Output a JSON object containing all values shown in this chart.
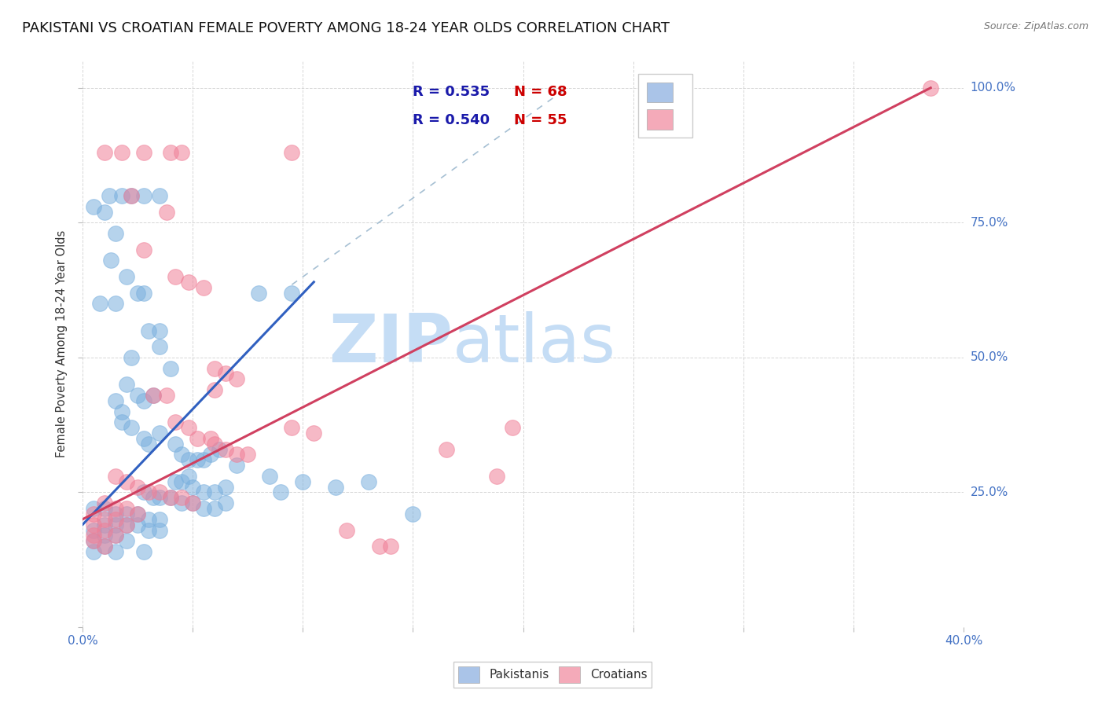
{
  "title": "PAKISTANI VS CROATIAN FEMALE POVERTY AMONG 18-24 YEAR OLDS CORRELATION CHART",
  "source": "Source: ZipAtlas.com",
  "ylabel": "Female Poverty Among 18-24 Year Olds",
  "pakistani_color": "#7ab0de",
  "croatian_color": "#f08098",
  "pakistani_scatter": [
    [
      0.5,
      78
    ],
    [
      1.2,
      80
    ],
    [
      1.8,
      80
    ],
    [
      2.2,
      80
    ],
    [
      2.8,
      80
    ],
    [
      3.5,
      80
    ],
    [
      1.0,
      77
    ],
    [
      1.5,
      73
    ],
    [
      1.3,
      68
    ],
    [
      2.0,
      65
    ],
    [
      1.5,
      60
    ],
    [
      0.8,
      60
    ],
    [
      2.5,
      62
    ],
    [
      2.8,
      62
    ],
    [
      3.0,
      55
    ],
    [
      3.5,
      52
    ],
    [
      2.2,
      50
    ],
    [
      2.0,
      45
    ],
    [
      2.5,
      43
    ],
    [
      2.8,
      42
    ],
    [
      1.5,
      42
    ],
    [
      1.8,
      40
    ],
    [
      3.2,
      43
    ],
    [
      1.8,
      38
    ],
    [
      2.2,
      37
    ],
    [
      2.8,
      35
    ],
    [
      3.5,
      36
    ],
    [
      3.0,
      34
    ],
    [
      3.5,
      55
    ],
    [
      4.0,
      48
    ],
    [
      4.2,
      34
    ],
    [
      4.5,
      32
    ],
    [
      4.8,
      31
    ],
    [
      5.2,
      31
    ],
    [
      5.5,
      31
    ],
    [
      5.8,
      32
    ],
    [
      6.2,
      33
    ],
    [
      4.2,
      27
    ],
    [
      4.5,
      27
    ],
    [
      4.8,
      28
    ],
    [
      5.0,
      26
    ],
    [
      5.5,
      25
    ],
    [
      6.0,
      25
    ],
    [
      6.5,
      26
    ],
    [
      7.0,
      30
    ],
    [
      2.8,
      25
    ],
    [
      3.2,
      24
    ],
    [
      3.5,
      24
    ],
    [
      4.0,
      24
    ],
    [
      4.5,
      23
    ],
    [
      5.0,
      23
    ],
    [
      5.5,
      22
    ],
    [
      6.0,
      22
    ],
    [
      6.5,
      23
    ],
    [
      0.5,
      22
    ],
    [
      1.0,
      22
    ],
    [
      1.5,
      21
    ],
    [
      2.0,
      21
    ],
    [
      2.5,
      21
    ],
    [
      3.0,
      20
    ],
    [
      3.5,
      20
    ],
    [
      1.0,
      19
    ],
    [
      1.5,
      19
    ],
    [
      2.0,
      19
    ],
    [
      2.5,
      19
    ],
    [
      3.0,
      18
    ],
    [
      3.5,
      18
    ],
    [
      0.5,
      18
    ],
    [
      1.0,
      17
    ],
    [
      1.5,
      17
    ],
    [
      2.0,
      16
    ],
    [
      0.5,
      16
    ],
    [
      1.0,
      15
    ],
    [
      1.5,
      14
    ],
    [
      0.5,
      14
    ],
    [
      2.8,
      14
    ],
    [
      8.5,
      28
    ],
    [
      9.0,
      25
    ],
    [
      10.0,
      27
    ],
    [
      11.5,
      26
    ],
    [
      13.0,
      27
    ],
    [
      15.0,
      21
    ],
    [
      8.0,
      62
    ],
    [
      9.5,
      62
    ]
  ],
  "croatian_scatter": [
    [
      1.0,
      88
    ],
    [
      1.8,
      88
    ],
    [
      2.8,
      88
    ],
    [
      4.0,
      88
    ],
    [
      4.5,
      88
    ],
    [
      9.5,
      88
    ],
    [
      2.2,
      80
    ],
    [
      3.8,
      77
    ],
    [
      2.8,
      70
    ],
    [
      4.2,
      65
    ],
    [
      4.8,
      64
    ],
    [
      5.5,
      63
    ],
    [
      6.0,
      48
    ],
    [
      6.5,
      47
    ],
    [
      7.0,
      46
    ],
    [
      6.0,
      44
    ],
    [
      3.2,
      43
    ],
    [
      3.8,
      43
    ],
    [
      4.2,
      38
    ],
    [
      4.8,
      37
    ],
    [
      5.2,
      35
    ],
    [
      5.8,
      35
    ],
    [
      6.0,
      34
    ],
    [
      6.5,
      33
    ],
    [
      7.0,
      32
    ],
    [
      7.5,
      32
    ],
    [
      1.5,
      28
    ],
    [
      2.0,
      27
    ],
    [
      2.5,
      26
    ],
    [
      3.0,
      25
    ],
    [
      3.5,
      25
    ],
    [
      4.0,
      24
    ],
    [
      4.5,
      24
    ],
    [
      5.0,
      23
    ],
    [
      1.0,
      23
    ],
    [
      1.5,
      22
    ],
    [
      2.0,
      22
    ],
    [
      2.5,
      21
    ],
    [
      0.5,
      21
    ],
    [
      1.0,
      20
    ],
    [
      1.5,
      20
    ],
    [
      2.0,
      19
    ],
    [
      0.5,
      19
    ],
    [
      1.0,
      18
    ],
    [
      1.5,
      17
    ],
    [
      0.5,
      17
    ],
    [
      0.5,
      16
    ],
    [
      1.0,
      15
    ],
    [
      12.0,
      18
    ],
    [
      13.5,
      15
    ],
    [
      16.5,
      33
    ],
    [
      9.5,
      37
    ],
    [
      19.5,
      37
    ],
    [
      10.5,
      36
    ],
    [
      18.8,
      28
    ],
    [
      14.0,
      15
    ],
    [
      38.5,
      100
    ]
  ],
  "pak_line_x": [
    0.0,
    10.5
  ],
  "pak_line_y": [
    19.0,
    64.0
  ],
  "cro_line_x": [
    0.0,
    38.5
  ],
  "cro_line_y": [
    20.0,
    100.0
  ],
  "diag_line_x": [
    9.5,
    22.0
  ],
  "diag_line_y": [
    63.5,
    100.0
  ],
  "xlim": [
    0,
    40
  ],
  "ylim": [
    0,
    105
  ],
  "x_ticks_show": [
    0,
    40
  ],
  "y_ticks": [
    0,
    25,
    50,
    75,
    100
  ],
  "y_tick_labels_right": [
    "",
    "25.0%",
    "50.0%",
    "75.0%",
    "100.0%"
  ],
  "grid_color": "#cccccc",
  "watermark_zip": "ZIP",
  "watermark_atlas": "atlas",
  "watermark_color": "#c5ddf5",
  "background_color": "#ffffff",
  "title_fontsize": 13,
  "tick_label_color": "#4472c4",
  "legend_pak_color": "#aac4e8",
  "legend_cro_color": "#f4aab9",
  "legend_text_color": "#1a1aaa",
  "legend_n_color": "#cc0000"
}
